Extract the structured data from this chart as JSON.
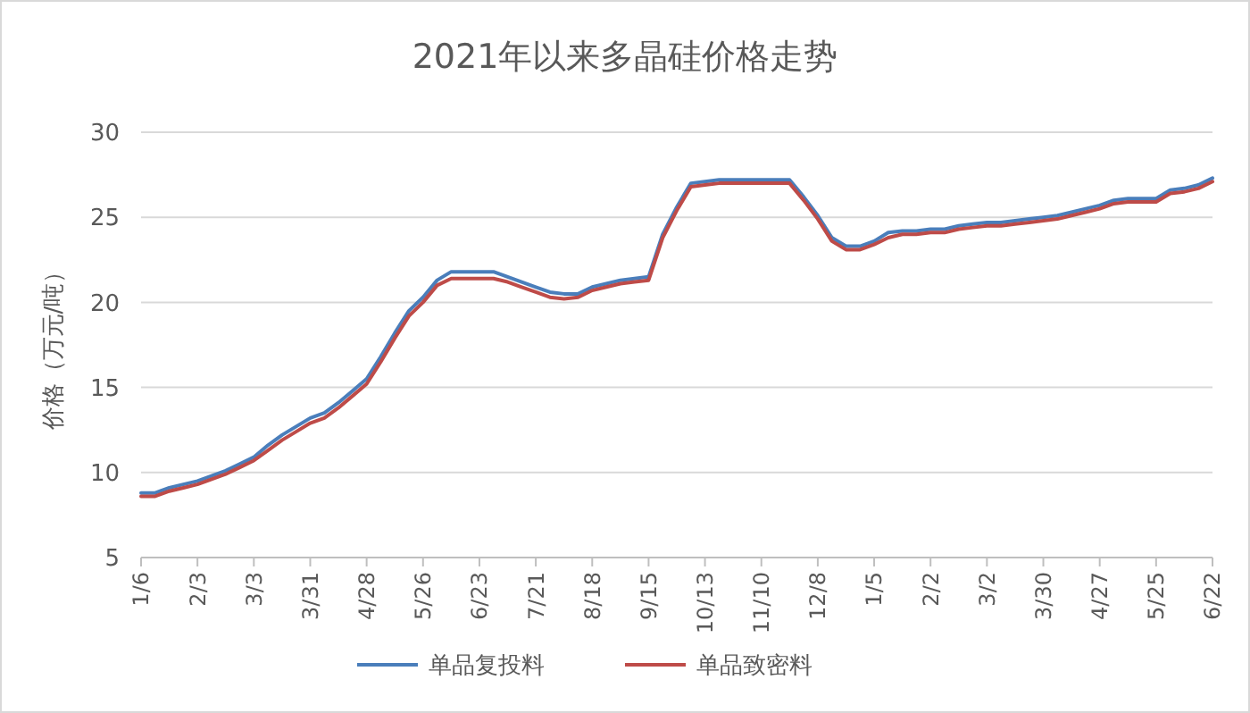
{
  "chart_data": {
    "type": "line",
    "title": "2021年以来多晶硅价格走势",
    "ylabel": "价格（万元/吨）",
    "categories": [
      "1/6",
      null,
      null,
      null,
      "2/3",
      null,
      null,
      null,
      "3/3",
      null,
      null,
      null,
      "3/31",
      null,
      null,
      null,
      "4/28",
      null,
      null,
      null,
      "5/26",
      null,
      null,
      null,
      "6/23",
      null,
      null,
      null,
      "7/21",
      null,
      null,
      null,
      "8/18",
      null,
      null,
      null,
      "9/15",
      null,
      null,
      null,
      "10/13",
      null,
      null,
      null,
      "11/10",
      null,
      null,
      null,
      "12/8",
      null,
      null,
      null,
      "1/5",
      null,
      null,
      null,
      "2/2",
      null,
      null,
      null,
      "3/2",
      null,
      null,
      null,
      "3/30",
      null,
      null,
      null,
      "4/27",
      null,
      null,
      null,
      "5/25",
      null,
      null,
      null,
      "6/22"
    ],
    "series": [
      {
        "name": "单品复投料",
        "color": "#4a7ebb",
        "values": [
          8.8,
          8.8,
          9.1,
          9.3,
          9.5,
          9.8,
          10.1,
          10.5,
          10.9,
          11.6,
          12.2,
          12.7,
          13.2,
          13.5,
          14.1,
          14.8,
          15.5,
          16.8,
          18.2,
          19.5,
          20.3,
          21.3,
          21.8,
          21.8,
          21.8,
          21.8,
          21.5,
          21.2,
          20.9,
          20.6,
          20.5,
          20.5,
          20.9,
          21.1,
          21.3,
          21.4,
          21.5,
          24.0,
          25.6,
          27.0,
          27.1,
          27.2,
          27.2,
          27.2,
          27.2,
          27.2,
          27.2,
          26.2,
          25.1,
          23.8,
          23.3,
          23.3,
          23.6,
          24.1,
          24.2,
          24.2,
          24.3,
          24.3,
          24.5,
          24.6,
          24.7,
          24.7,
          24.8,
          24.9,
          25.0,
          25.1,
          25.3,
          25.5,
          25.7,
          26.0,
          26.1,
          26.1,
          26.1,
          26.6,
          26.7,
          26.9,
          27.3
        ]
      },
      {
        "name": "单品致密料",
        "color": "#be4b48",
        "values": [
          8.6,
          8.6,
          8.9,
          9.1,
          9.3,
          9.6,
          9.9,
          10.3,
          10.7,
          11.3,
          11.9,
          12.4,
          12.9,
          13.2,
          13.8,
          14.5,
          15.2,
          16.5,
          17.9,
          19.2,
          20.0,
          21.0,
          21.4,
          21.4,
          21.4,
          21.4,
          21.2,
          20.9,
          20.6,
          20.3,
          20.2,
          20.3,
          20.7,
          20.9,
          21.1,
          21.2,
          21.3,
          23.8,
          25.4,
          26.8,
          26.9,
          27.0,
          27.0,
          27.0,
          27.0,
          27.0,
          27.0,
          26.0,
          24.9,
          23.6,
          23.1,
          23.1,
          23.4,
          23.8,
          24.0,
          24.0,
          24.1,
          24.1,
          24.3,
          24.4,
          24.5,
          24.5,
          24.6,
          24.7,
          24.8,
          24.9,
          25.1,
          25.3,
          25.5,
          25.8,
          25.9,
          25.9,
          25.9,
          26.4,
          26.5,
          26.7,
          27.1
        ]
      }
    ],
    "ylim": [
      5,
      30
    ],
    "yticks": [
      5,
      10,
      15,
      20,
      25,
      30
    ],
    "grid": "y",
    "legend": "bottom",
    "marker": "none",
    "line_style": "solid"
  }
}
